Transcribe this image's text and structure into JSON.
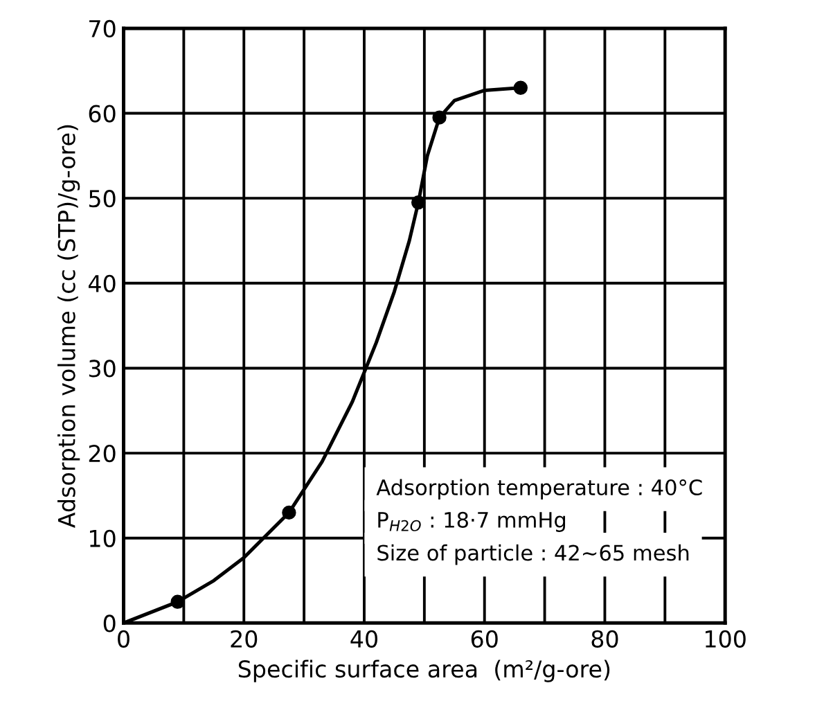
{
  "chart_data": {
    "type": "scatter",
    "xlabel": "Specific surface area  (m²/g-ore)",
    "ylabel": "Adsorption volume (cc (STP)/g-ore)",
    "xlim": [
      0,
      100
    ],
    "ylim": [
      0,
      70
    ],
    "xticks": [
      {
        "value": 0,
        "label": "0"
      },
      {
        "value": 10,
        "label": null
      },
      {
        "value": 20,
        "label": "20"
      },
      {
        "value": 30,
        "label": null
      },
      {
        "value": 40,
        "label": "40"
      },
      {
        "value": 50,
        "label": null
      },
      {
        "value": 60,
        "label": "60"
      },
      {
        "value": 70,
        "label": null
      },
      {
        "value": 80,
        "label": "80"
      },
      {
        "value": 90,
        "label": null
      },
      {
        "value": 100,
        "label": "100"
      }
    ],
    "yticks": [
      0,
      10,
      20,
      30,
      40,
      50,
      60,
      70
    ],
    "grid": true,
    "series": [
      {
        "type": "line",
        "color": "#000000",
        "line_style": "solid",
        "marker": "none",
        "x": [
          0,
          9,
          15,
          20,
          27.5,
          33,
          38,
          42,
          45,
          47.5,
          49,
          50.5,
          52.5,
          55,
          60,
          66
        ],
        "values": [
          0,
          2.5,
          5,
          7.7,
          13,
          19,
          26,
          33,
          39,
          45,
          49.5,
          55,
          59.5,
          61.5,
          62.7,
          63
        ]
      },
      {
        "color": "#000000",
        "marker": "circle",
        "x": [
          9,
          27.5,
          49,
          52.5,
          66
        ],
        "values": [
          2.5,
          13,
          49.5,
          59.5,
          63
        ]
      }
    ],
    "annotations": [
      "Adsorption temperature : 40°C",
      "P$_{H2O}$ : 18·7 mmHg",
      "Size of particle : 42~65 mesh"
    ]
  }
}
